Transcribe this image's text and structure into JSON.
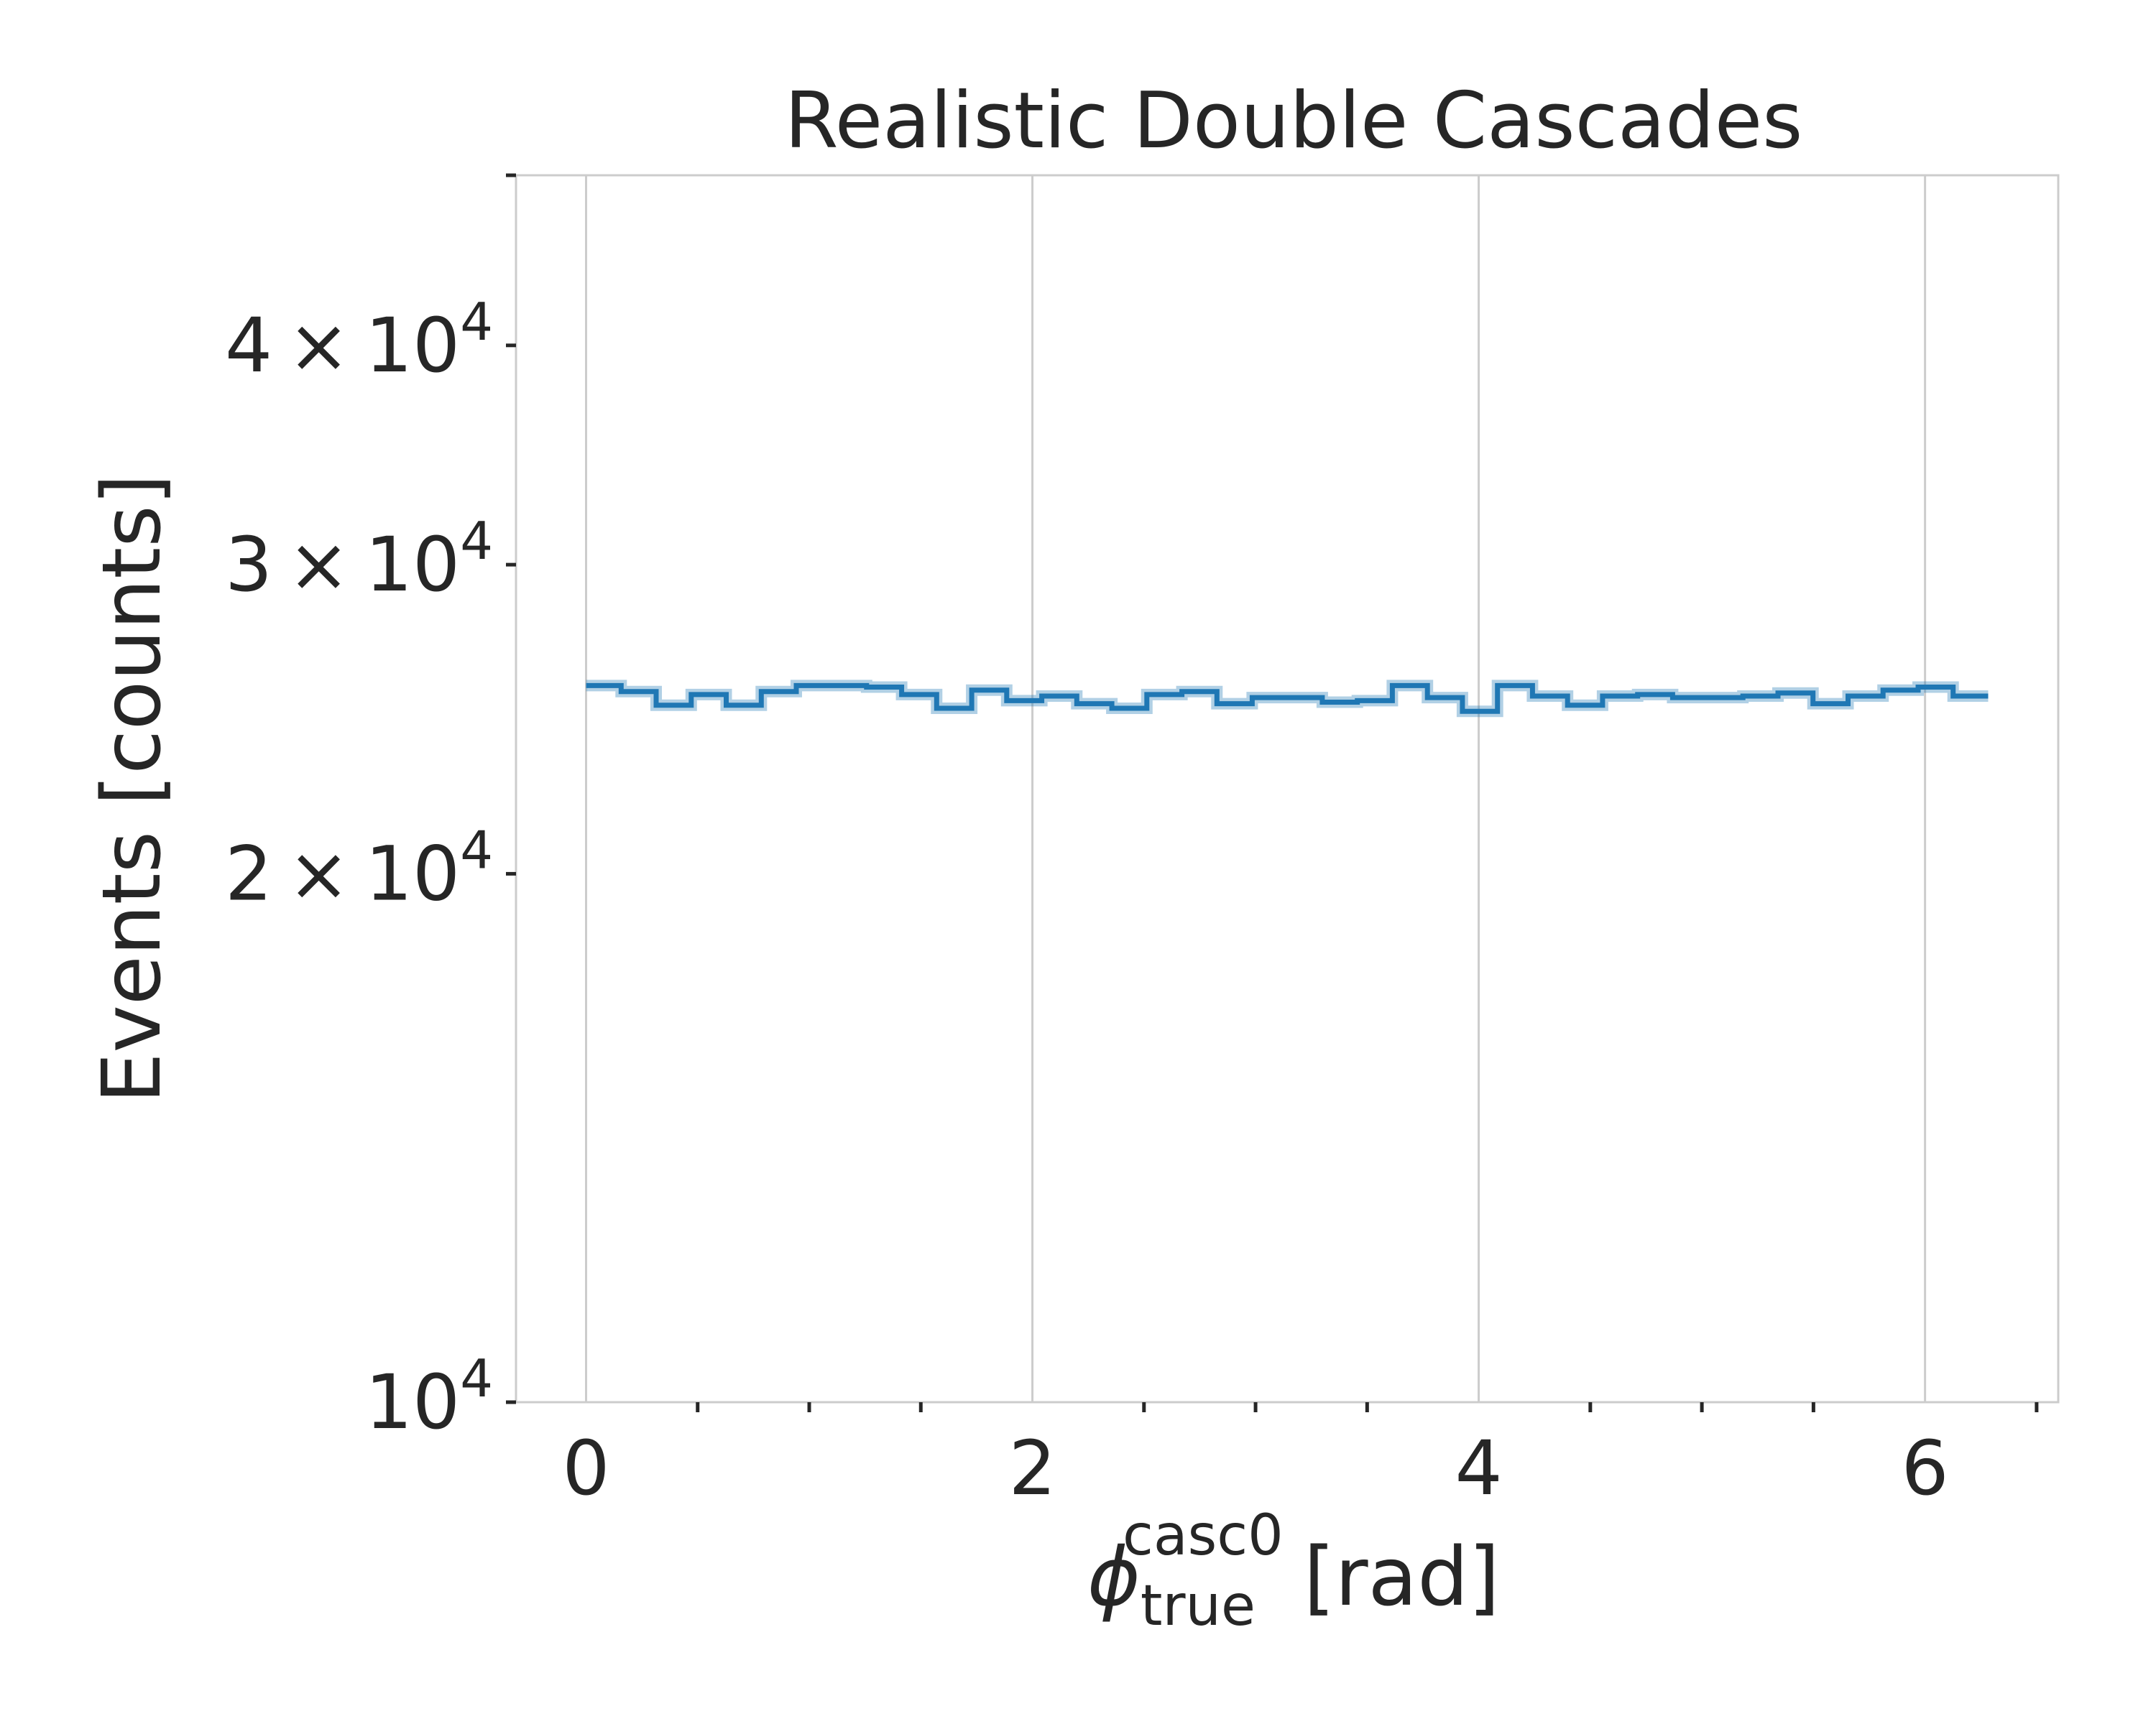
{
  "chart_data": {
    "type": "line",
    "drawstyle": "steps-post",
    "title": "Realistic Double Cascades",
    "xlabel": {
      "symbol": "ϕ",
      "subscript": "true",
      "superscript": "casc0",
      "unit": "[rad]"
    },
    "ylabel": "Events [counts]",
    "yscale": "log",
    "xlim": [
      -0.314,
      6.597
    ],
    "ylim": [
      10000,
      50000
    ],
    "grid": "vertical",
    "x_ticks": [
      {
        "value": 0,
        "label": "0"
      },
      {
        "value": 2,
        "label": "2"
      },
      {
        "value": 4,
        "label": "4"
      },
      {
        "value": 6,
        "label": "6"
      }
    ],
    "x_minor_ticks": [
      0.5,
      1.0,
      1.5,
      2.5,
      3.0,
      3.5,
      4.5,
      5.0,
      5.5,
      6.5
    ],
    "y_ticks": [
      {
        "value": 10000,
        "mantissa": "",
        "base": "10",
        "exp": "4"
      },
      {
        "value": 20000,
        "mantissa": "2",
        "base": "10",
        "exp": "4"
      },
      {
        "value": 30000,
        "mantissa": "3",
        "base": "10",
        "exp": "4"
      },
      {
        "value": 40000,
        "mantissa": "4",
        "base": "10",
        "exp": "4"
      }
    ],
    "series": [
      {
        "color": "#1f77b4",
        "bin_edges": [
          0.0,
          0.157,
          0.314,
          0.471,
          0.628,
          0.785,
          0.942,
          1.1,
          1.257,
          1.414,
          1.571,
          1.728,
          1.885,
          2.042,
          2.199,
          2.356,
          2.513,
          2.67,
          2.827,
          2.985,
          3.142,
          3.299,
          3.456,
          3.613,
          3.77,
          3.927,
          4.084,
          4.241,
          4.398,
          4.555,
          4.712,
          4.869,
          5.027,
          5.184,
          5.341,
          5.498,
          5.655,
          5.812,
          5.969,
          6.126,
          6.283
        ],
        "values": [
          25600,
          25400,
          24950,
          25300,
          24950,
          25400,
          25600,
          25600,
          25550,
          25300,
          24850,
          25450,
          25100,
          25250,
          25000,
          24850,
          25300,
          25400,
          25000,
          25200,
          25200,
          25050,
          25100,
          25600,
          25200,
          24750,
          25600,
          25250,
          24950,
          25250,
          25300,
          25200,
          25200,
          25250,
          25350,
          25000,
          25250,
          25450,
          25550,
          25250
        ]
      }
    ]
  }
}
